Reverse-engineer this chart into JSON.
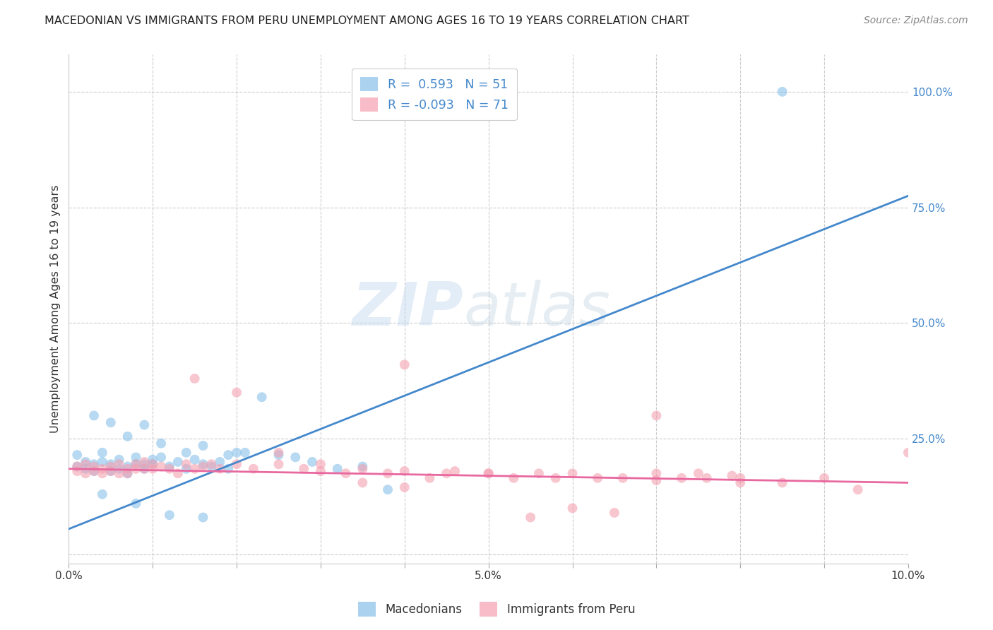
{
  "title": "MACEDONIAN VS IMMIGRANTS FROM PERU UNEMPLOYMENT AMONG AGES 16 TO 19 YEARS CORRELATION CHART",
  "source": "Source: ZipAtlas.com",
  "ylabel_left": "Unemployment Among Ages 16 to 19 years",
  "xlim": [
    0.0,
    0.1
  ],
  "ylim": [
    -0.02,
    1.08
  ],
  "xtick_labels": [
    "0.0%",
    "",
    "",
    "",
    "",
    "5.0%",
    "",
    "",
    "",
    "",
    "10.0%"
  ],
  "xtick_positions": [
    0.0,
    0.01,
    0.02,
    0.03,
    0.04,
    0.05,
    0.06,
    0.07,
    0.08,
    0.09,
    0.1
  ],
  "ytick_right_labels": [
    "100.0%",
    "75.0%",
    "50.0%",
    "25.0%",
    ""
  ],
  "ytick_right_positions": [
    1.0,
    0.75,
    0.5,
    0.25,
    0.0
  ],
  "blue_R": 0.593,
  "blue_N": 51,
  "pink_R": -0.093,
  "pink_N": 71,
  "blue_color": "#88c0e8",
  "pink_color": "#f4a0b0",
  "blue_line_color": "#4488cc",
  "pink_line_color": "#e868a0",
  "blue_line_x": [
    0.0,
    0.1
  ],
  "blue_line_y": [
    0.055,
    0.775
  ],
  "pink_line_x": [
    0.0,
    0.1
  ],
  "pink_line_y": [
    0.185,
    0.155
  ],
  "watermark_zip": "ZIP",
  "watermark_atlas": "atlas",
  "background_color": "#ffffff",
  "grid_color": "#cccccc",
  "legend_label_blue": "Macedonians",
  "legend_label_pink": "Immigrants from Peru",
  "blue_scatter_x": [
    0.001,
    0.001,
    0.002,
    0.002,
    0.003,
    0.003,
    0.004,
    0.004,
    0.005,
    0.005,
    0.006,
    0.006,
    0.007,
    0.007,
    0.008,
    0.008,
    0.009,
    0.009,
    0.01,
    0.01,
    0.011,
    0.012,
    0.013,
    0.014,
    0.015,
    0.016,
    0.017,
    0.018,
    0.019,
    0.02,
    0.003,
    0.005,
    0.007,
    0.009,
    0.011,
    0.014,
    0.016,
    0.019,
    0.021,
    0.023,
    0.025,
    0.027,
    0.029,
    0.032,
    0.035,
    0.038,
    0.004,
    0.008,
    0.012,
    0.016,
    0.085
  ],
  "blue_scatter_y": [
    0.19,
    0.215,
    0.2,
    0.185,
    0.195,
    0.18,
    0.2,
    0.22,
    0.195,
    0.18,
    0.205,
    0.185,
    0.19,
    0.175,
    0.195,
    0.21,
    0.185,
    0.195,
    0.205,
    0.195,
    0.21,
    0.19,
    0.2,
    0.185,
    0.205,
    0.195,
    0.19,
    0.2,
    0.185,
    0.22,
    0.3,
    0.285,
    0.255,
    0.28,
    0.24,
    0.22,
    0.235,
    0.215,
    0.22,
    0.34,
    0.215,
    0.21,
    0.2,
    0.185,
    0.19,
    0.14,
    0.13,
    0.11,
    0.085,
    0.08,
    1.0
  ],
  "pink_scatter_x": [
    0.001,
    0.001,
    0.002,
    0.002,
    0.003,
    0.003,
    0.004,
    0.004,
    0.005,
    0.005,
    0.006,
    0.006,
    0.007,
    0.007,
    0.008,
    0.008,
    0.009,
    0.009,
    0.01,
    0.01,
    0.011,
    0.012,
    0.013,
    0.014,
    0.015,
    0.016,
    0.017,
    0.018,
    0.02,
    0.022,
    0.025,
    0.028,
    0.03,
    0.033,
    0.035,
    0.038,
    0.04,
    0.043,
    0.046,
    0.05,
    0.053,
    0.056,
    0.058,
    0.06,
    0.063,
    0.066,
    0.07,
    0.073,
    0.076,
    0.079,
    0.015,
    0.02,
    0.025,
    0.03,
    0.035,
    0.04,
    0.045,
    0.05,
    0.055,
    0.06,
    0.065,
    0.07,
    0.075,
    0.08,
    0.085,
    0.09,
    0.094,
    0.04,
    0.07,
    0.1,
    0.08
  ],
  "pink_scatter_y": [
    0.19,
    0.18,
    0.195,
    0.175,
    0.19,
    0.18,
    0.185,
    0.175,
    0.19,
    0.18,
    0.195,
    0.175,
    0.185,
    0.175,
    0.195,
    0.185,
    0.2,
    0.185,
    0.195,
    0.185,
    0.19,
    0.185,
    0.175,
    0.195,
    0.185,
    0.19,
    0.195,
    0.185,
    0.195,
    0.185,
    0.195,
    0.185,
    0.195,
    0.175,
    0.185,
    0.175,
    0.18,
    0.165,
    0.18,
    0.175,
    0.165,
    0.175,
    0.165,
    0.175,
    0.165,
    0.165,
    0.16,
    0.165,
    0.165,
    0.17,
    0.38,
    0.35,
    0.22,
    0.18,
    0.155,
    0.145,
    0.175,
    0.175,
    0.08,
    0.1,
    0.09,
    0.175,
    0.175,
    0.165,
    0.155,
    0.165,
    0.14,
    0.41,
    0.3,
    0.22,
    0.155
  ]
}
